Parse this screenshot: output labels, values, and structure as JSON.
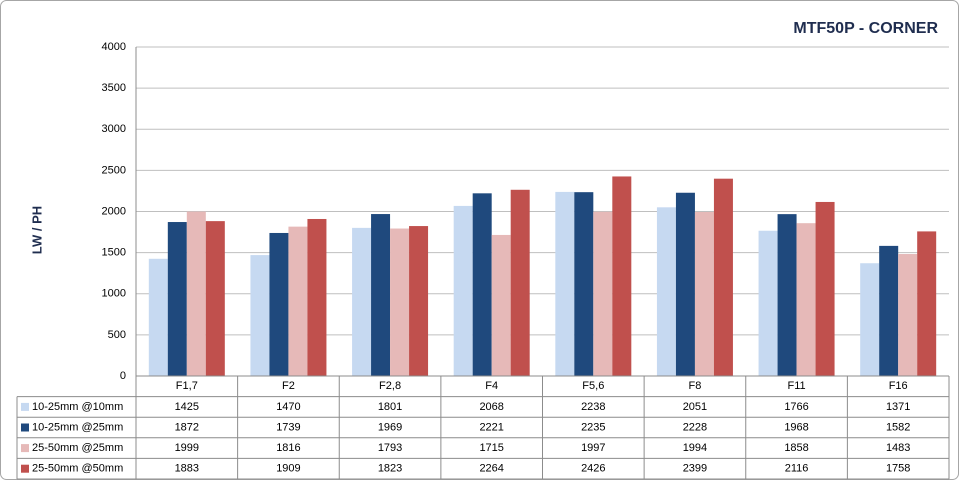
{
  "chart_data": {
    "type": "bar",
    "title": "MTF50P - CORNER",
    "y_label": "LW / PH",
    "categories": [
      "F1,7",
      "F2",
      "F2,8",
      "F4",
      "F5,6",
      "F8",
      "F11",
      "F16"
    ],
    "series": [
      {
        "name": "10-25mm @10mm",
        "color": "#c6d9f1",
        "values": [
          1425,
          1470,
          1801,
          2068,
          2238,
          2051,
          1766,
          1371
        ]
      },
      {
        "name": "10-25mm @25mm",
        "color": "#1f497d",
        "values": [
          1872,
          1739,
          1969,
          2221,
          2235,
          2228,
          1968,
          1582
        ]
      },
      {
        "name": "25-50mm @25mm",
        "color": "#e6b9b8",
        "values": [
          1999,
          1816,
          1793,
          1715,
          1997,
          1994,
          1858,
          1483
        ]
      },
      {
        "name": "25-50mm @50mm",
        "color": "#c0504d",
        "values": [
          1883,
          1909,
          1823,
          2264,
          2426,
          2399,
          2116,
          1758
        ]
      }
    ],
    "ylim": [
      0,
      4000
    ],
    "yticks": [
      0,
      500,
      1000,
      1500,
      2000,
      2500,
      3000,
      3500,
      4000
    ],
    "grid": true,
    "data_table": true
  }
}
